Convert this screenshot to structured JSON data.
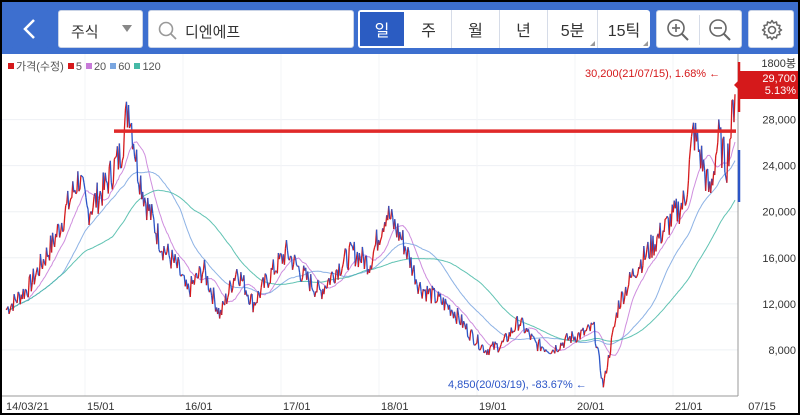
{
  "header": {
    "back_label": "<",
    "market_label": "주식",
    "search_value": "디엔에프",
    "tabs": [
      {
        "label": "일",
        "active": true
      },
      {
        "label": "주",
        "active": false
      },
      {
        "label": "월",
        "active": false
      },
      {
        "label": "년",
        "active": false
      },
      {
        "label": "5분",
        "active": false
      },
      {
        "label": "15틱",
        "active": false
      }
    ],
    "icons": [
      "back-icon",
      "chevron-down-icon",
      "search-icon",
      "zoom-in-icon",
      "zoom-out-icon",
      "gear-icon"
    ]
  },
  "legend": {
    "items": [
      {
        "label": "가격(수정)",
        "color": "#d5191b"
      },
      {
        "label": "5",
        "color": "#d5191b"
      },
      {
        "label": "20",
        "color": "#c77ad8"
      },
      {
        "label": "60",
        "color": "#7aa6e0"
      },
      {
        "label": "120",
        "color": "#45b9a6"
      }
    ]
  },
  "annotations": {
    "high": "30,200(21/07/15), 1.68% ←",
    "low": "4,850(20/03/19), -83.67% ←",
    "price_box_value": "29,700",
    "price_box_change": "5.13%"
  },
  "colors": {
    "up": "#d5191b",
    "down": "#2b55c7",
    "header": "#3d6fcf",
    "hline": "#e02a2a"
  },
  "chart_data": {
    "type": "line",
    "title": "",
    "y_unit_label": "1800봉",
    "yticks": [
      8000,
      12000,
      16000,
      20000,
      24000,
      28000
    ],
    "ytick_labels": [
      "8,000",
      "12,000",
      "16,000",
      "20,000",
      "24,000",
      "28,000"
    ],
    "ylim": [
      4000,
      33000
    ],
    "xtick_labels": [
      "14/03/21",
      "15/01",
      "16/01",
      "17/01",
      "18/01",
      "19/01",
      "20/01",
      "21/01",
      "07/15"
    ],
    "horizontal_line": 27000,
    "series": [
      {
        "name": "가격(수정)",
        "x": [
          "2014-03-21",
          "2014-06",
          "2014-09",
          "2014-12",
          "2015-01",
          "2015-03",
          "2015-05",
          "2015-06",
          "2015-07",
          "2015-08",
          "2015-10",
          "2015-12",
          "2016-01",
          "2016-03",
          "2016-05",
          "2016-07",
          "2016-09",
          "2016-11",
          "2017-01",
          "2017-03",
          "2017-05",
          "2017-07",
          "2017-09",
          "2017-11",
          "2018-01",
          "2018-03",
          "2018-05",
          "2018-07",
          "2018-09",
          "2018-11",
          "2019-01",
          "2019-03",
          "2019-05",
          "2019-07",
          "2019-09",
          "2019-11",
          "2020-01",
          "2020-02",
          "2020-03-19",
          "2020-05",
          "2020-07",
          "2020-09",
          "2020-11",
          "2021-01",
          "2021-02",
          "2021-03",
          "2021-04",
          "2021-05",
          "2021-06",
          "2021-07-15"
        ],
        "values": [
          11500,
          13500,
          17500,
          23000,
          20000,
          22000,
          25000,
          29500,
          24000,
          21000,
          17000,
          15000,
          13000,
          15000,
          11000,
          15000,
          12000,
          14500,
          16500,
          14500,
          13000,
          15000,
          16500,
          15500,
          20000,
          17500,
          13500,
          12500,
          11500,
          9500,
          8000,
          8500,
          10500,
          8500,
          8000,
          9000,
          9500,
          10000,
          4850,
          12000,
          15000,
          17000,
          19000,
          21000,
          27000,
          24500,
          21500,
          26500,
          24000,
          30200
        ]
      }
    ]
  }
}
